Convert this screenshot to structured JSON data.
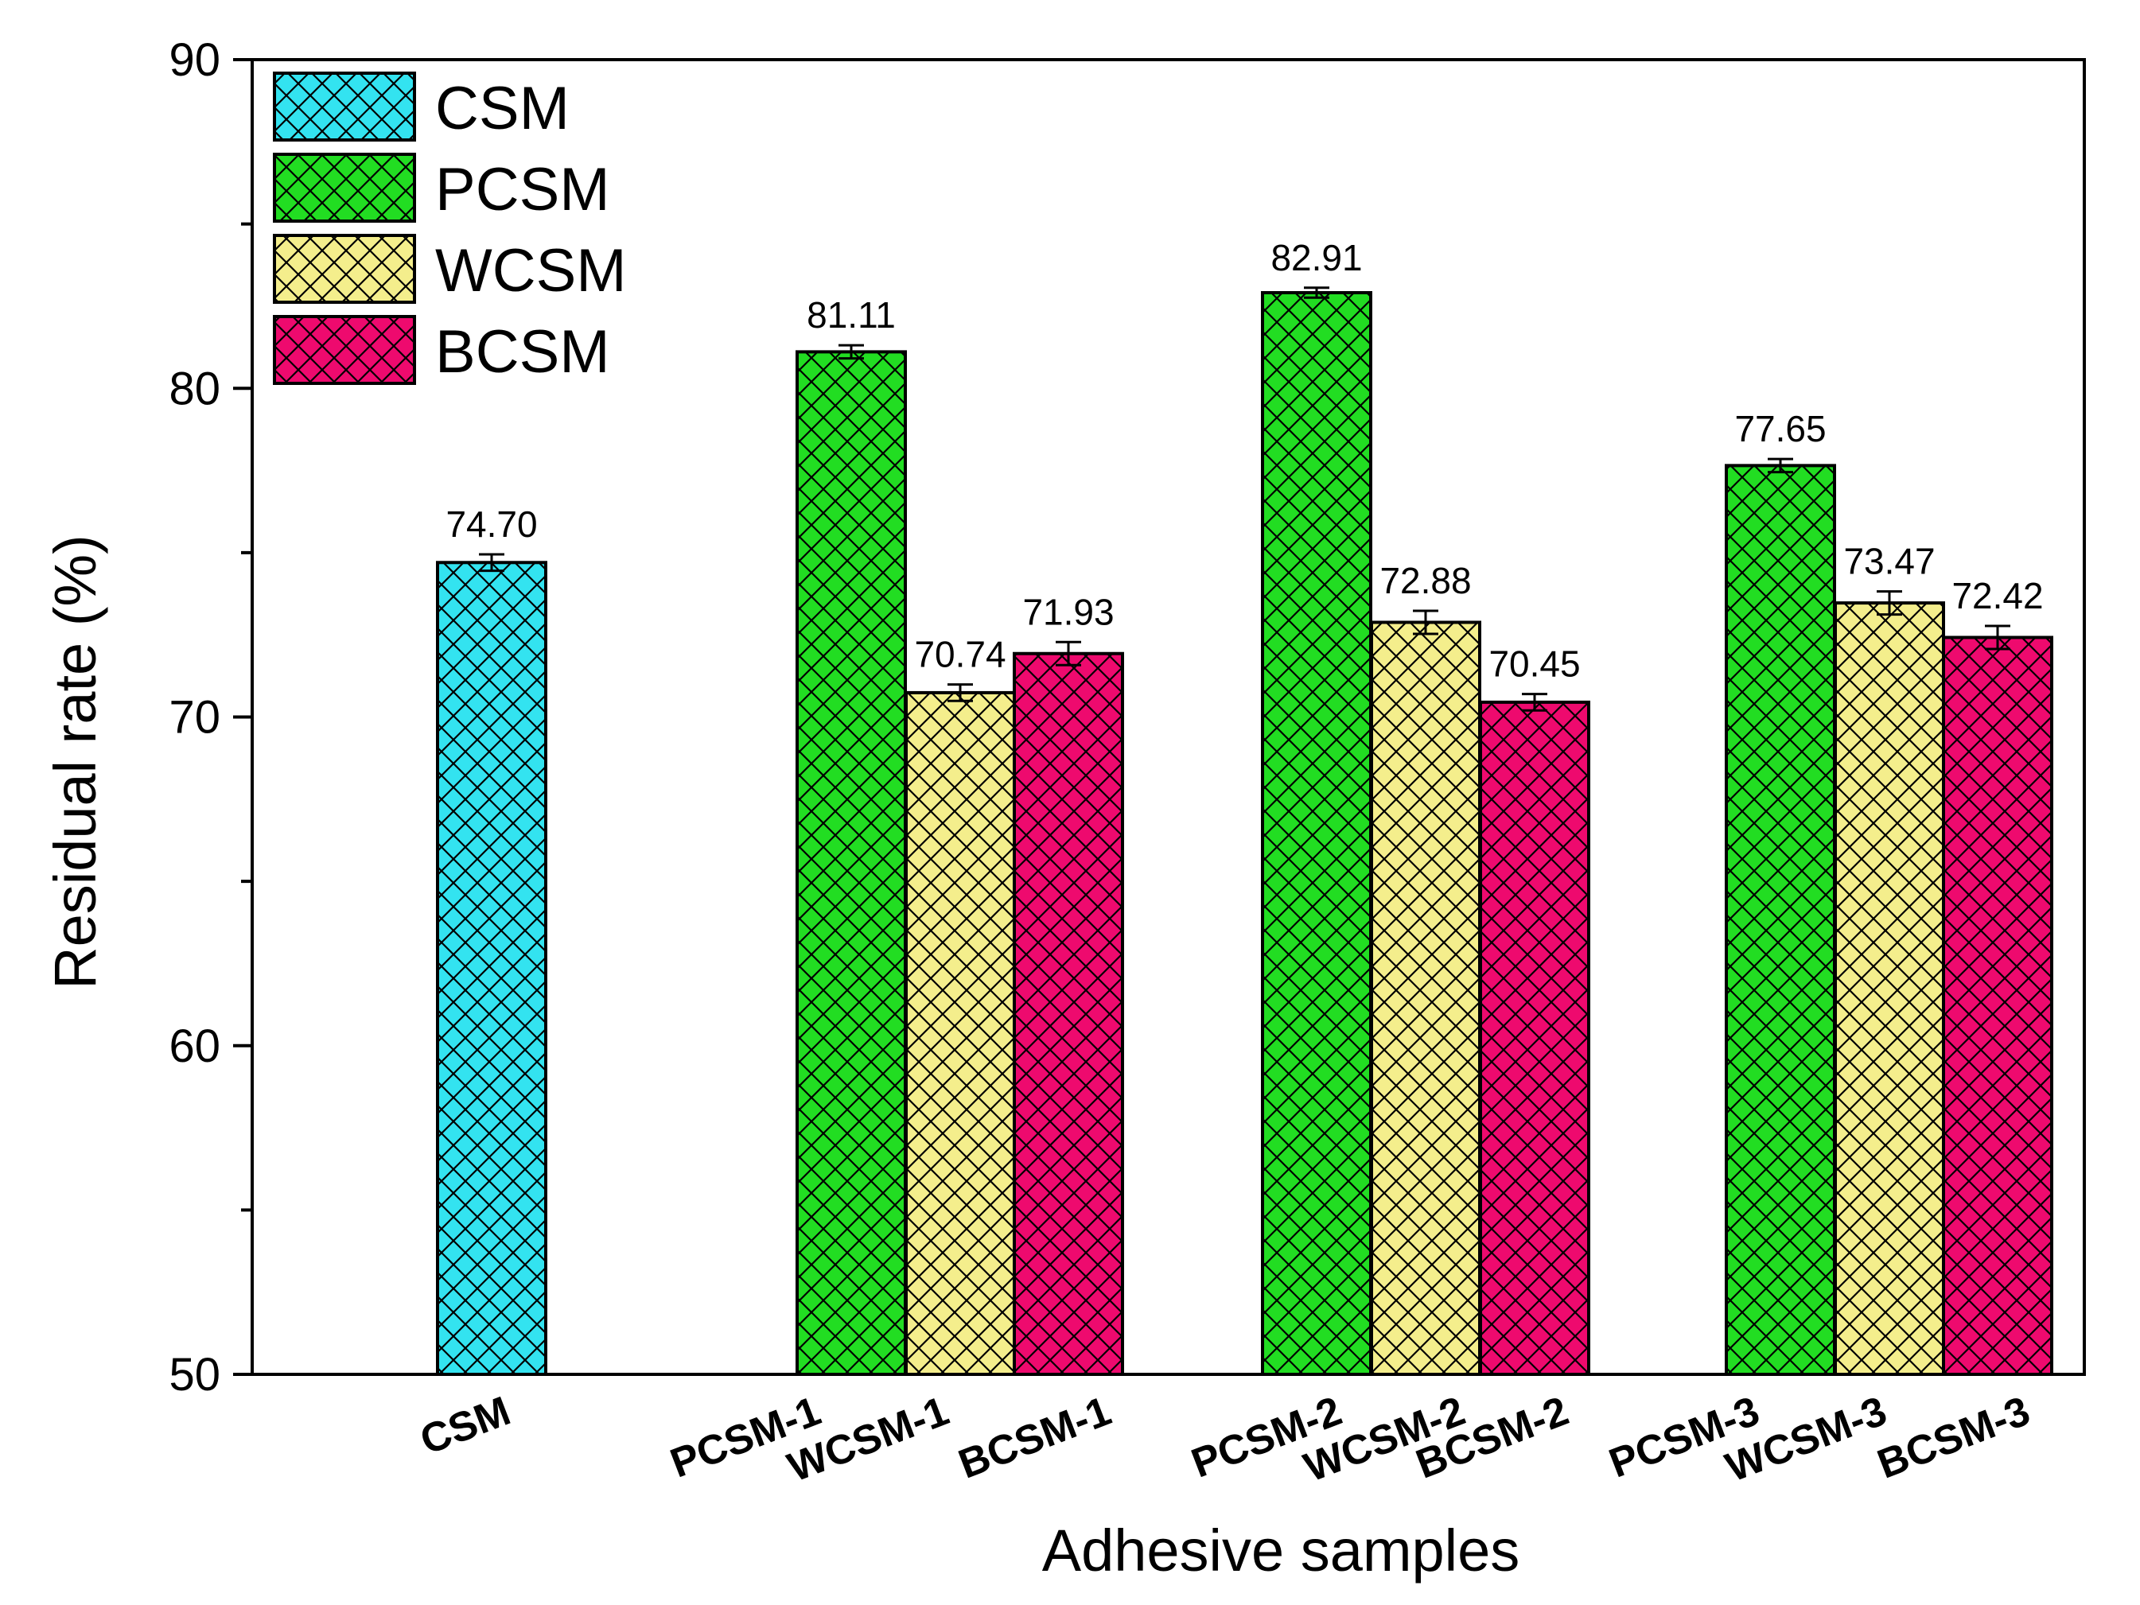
{
  "chart_data": {
    "type": "bar",
    "xlabel": "Adhesive samples",
    "ylabel": "Residual rate (%)",
    "ylim": [
      50,
      90
    ],
    "yticks": [
      50,
      60,
      70,
      80,
      90
    ],
    "grid": false,
    "legend_position": "top-left",
    "legend": [
      {
        "name": "CSM",
        "color": "#33e3f0"
      },
      {
        "name": "PCSM",
        "color": "#22dd22"
      },
      {
        "name": "WCSM",
        "color": "#f4ee8c"
      },
      {
        "name": "BCSM",
        "color": "#ee0a6e"
      }
    ],
    "bars": [
      {
        "category": "CSM",
        "series": "CSM",
        "value": 74.7,
        "label": "74.70",
        "error": 0.25
      },
      {
        "category": "PCSM-1",
        "series": "PCSM",
        "value": 81.11,
        "label": "81.11",
        "error": 0.2
      },
      {
        "category": "WCSM-1",
        "series": "WCSM",
        "value": 70.74,
        "label": "70.74",
        "error": 0.25
      },
      {
        "category": "BCSM-1",
        "series": "BCSM",
        "value": 71.93,
        "label": "71.93",
        "error": 0.35
      },
      {
        "category": "PCSM-2",
        "series": "PCSM",
        "value": 82.91,
        "label": "82.91",
        "error": 0.15
      },
      {
        "category": "WCSM-2",
        "series": "WCSM",
        "value": 72.88,
        "label": "72.88",
        "error": 0.35
      },
      {
        "category": "BCSM-2",
        "series": "BCSM",
        "value": 70.45,
        "label": "70.45",
        "error": 0.25
      },
      {
        "category": "PCSM-3",
        "series": "PCSM",
        "value": 77.65,
        "label": "77.65",
        "error": 0.2
      },
      {
        "category": "WCSM-3",
        "series": "WCSM",
        "value": 73.47,
        "label": "73.47",
        "error": 0.35
      },
      {
        "category": "BCSM-3",
        "series": "BCSM",
        "value": 72.42,
        "label": "72.42",
        "error": 0.35
      }
    ]
  }
}
